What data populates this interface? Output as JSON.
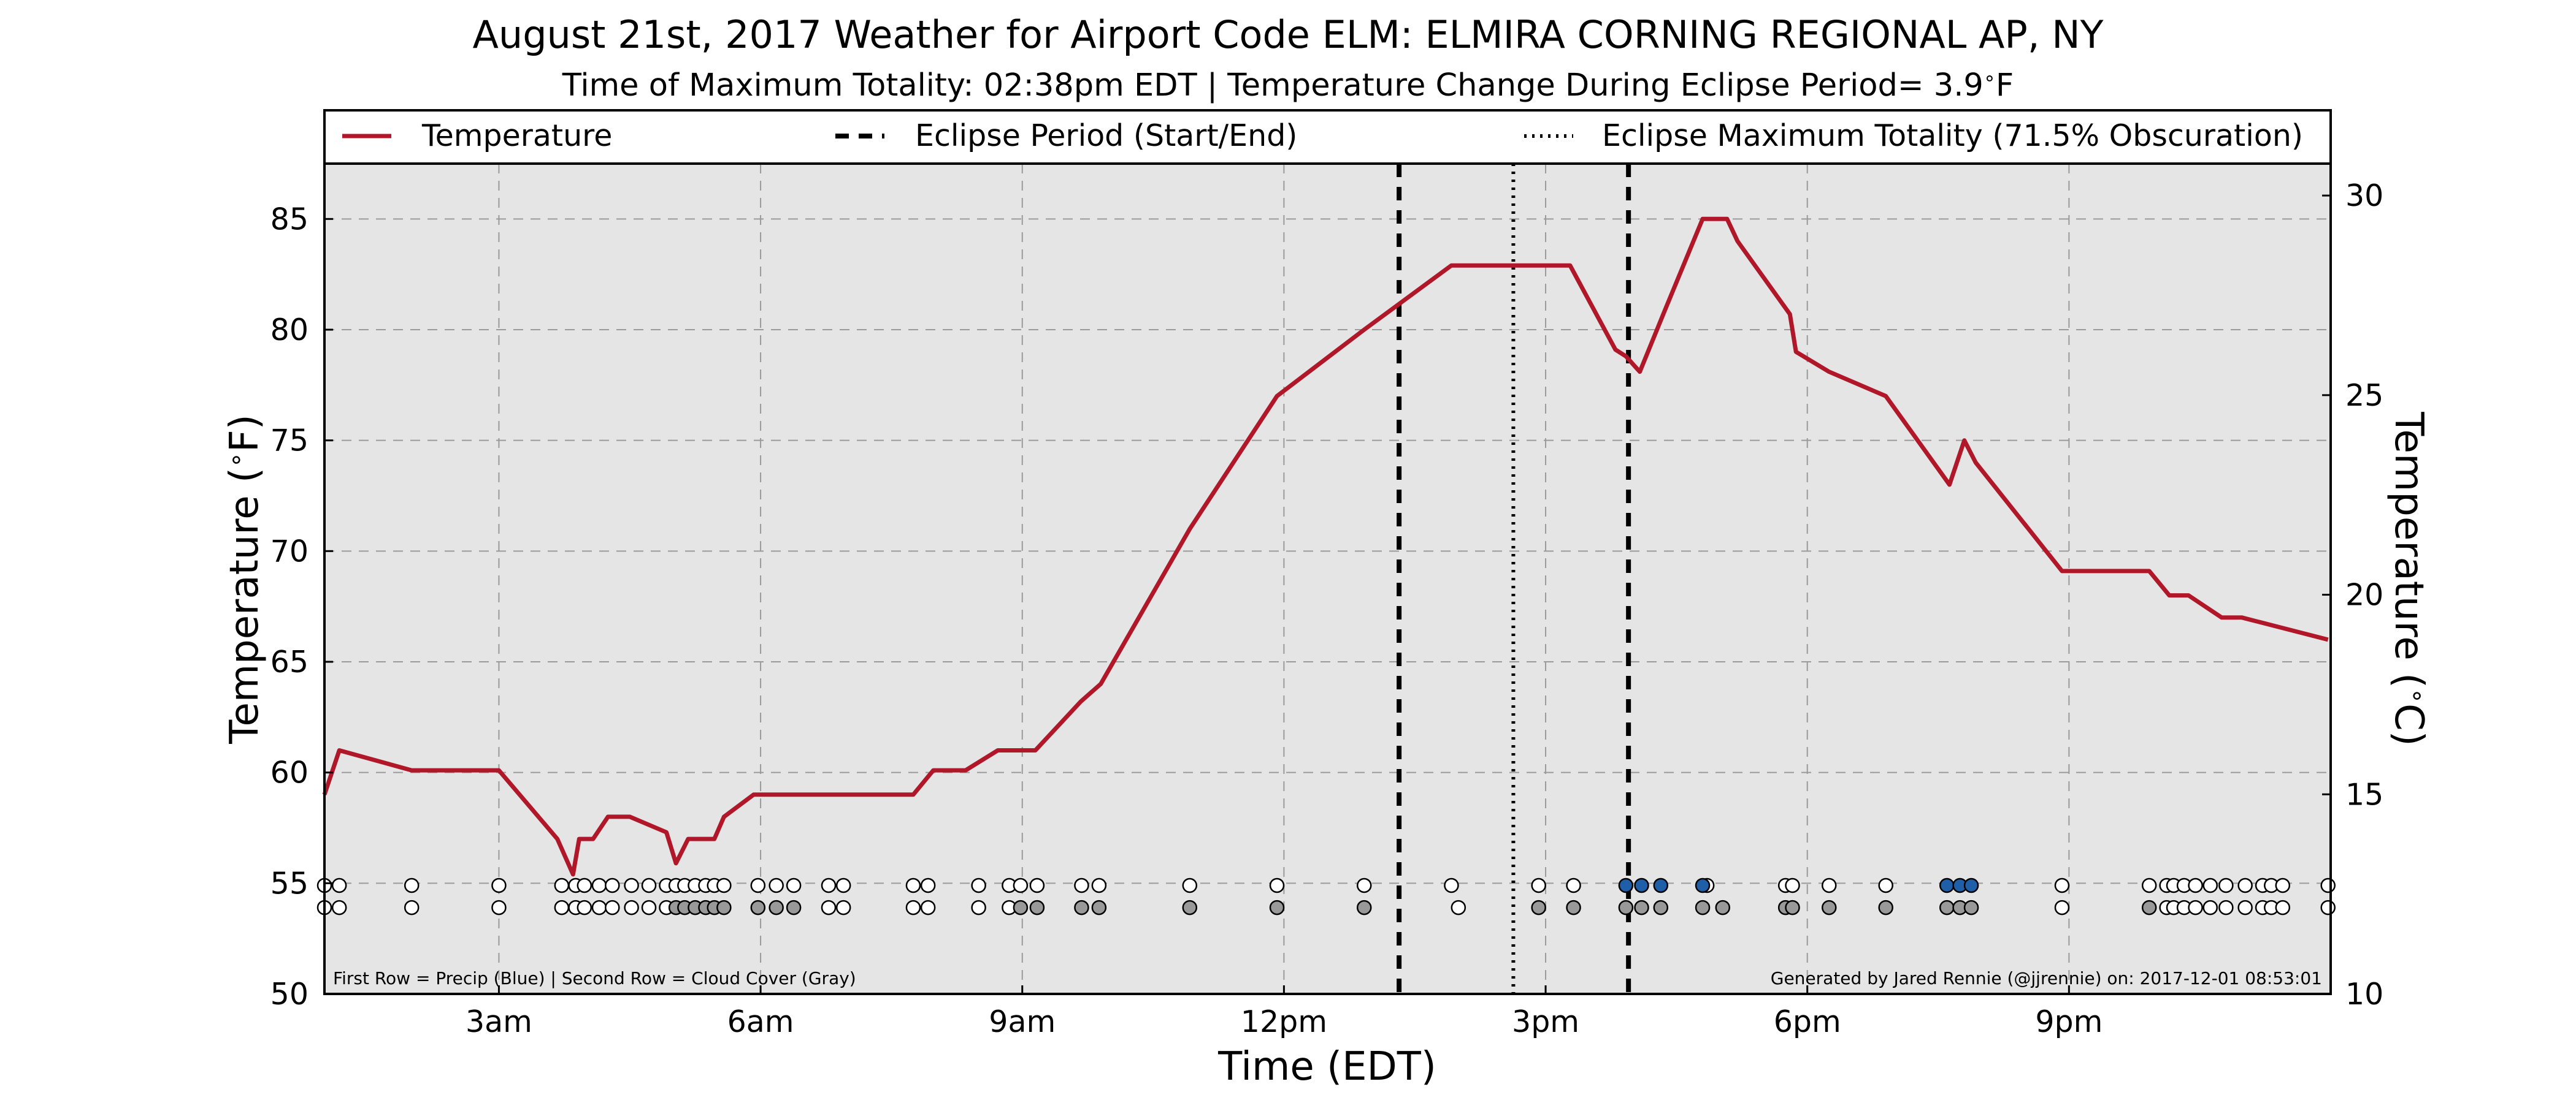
{
  "chart_data": {
    "type": "line",
    "title": "August 21st, 2017 Weather for Airport Code ELM: ELMIRA CORNING REGIONAL AP, NY",
    "subtitle": "Time of Maximum Totality: 02:38pm EDT | Temperature Change During Eclipse Period= 3.9",
    "subtitle_unit": "F",
    "xlabel": "Time (EDT)",
    "ylabel": "Temperature (",
    "y2label": "Temperature (",
    "ylabel_unit": "F)",
    "y2label_unit": "C)",
    "xlim": [
      1.0,
      24.0
    ],
    "ylim": [
      50,
      87.5
    ],
    "y2lim": [
      10,
      30.8
    ],
    "x_ticks": [
      3,
      6,
      9,
      12,
      15,
      18,
      21
    ],
    "x_tick_labels": [
      "3am",
      "6am",
      "9am",
      "12pm",
      "3pm",
      "6pm",
      "9pm"
    ],
    "y_ticks": [
      50,
      55,
      60,
      65,
      70,
      75,
      80,
      85
    ],
    "y_tick_labels": [
      "50",
      "55",
      "60",
      "65",
      "70",
      "75",
      "80",
      "85"
    ],
    "y2_ticks": [
      10,
      15,
      20,
      25,
      30
    ],
    "y2_tick_labels": [
      "10",
      "15",
      "20",
      "25",
      "30"
    ],
    "grid": true,
    "legend": {
      "placement": "top",
      "temperature": "Temperature",
      "eclipse_period": "Eclipse Period (Start/End)",
      "eclipse_max": "Eclipse Maximum Totality (71.5% Obscuration)"
    },
    "footnote_left": "First Row = Precip (Blue) | Second Row = Cloud Cover (Gray)",
    "footnote_right": "Generated by Jared Rennie (@jjrennie) on: 2017-12-01 08:53:01",
    "colors": {
      "temperature": "#b0182a",
      "plot_bg": "#e5e5e5",
      "precip": "#1f5fa8",
      "cloud": "#999999",
      "clear": "#ffffff"
    },
    "eclipse": {
      "start": 13.32,
      "max": 14.63,
      "end": 15.95
    },
    "series": [
      {
        "name": "Temperature",
        "x": [
          1.0,
          1.17,
          2.0,
          2.95,
          3.0,
          3.67,
          3.85,
          3.92,
          4.08,
          4.25,
          4.5,
          4.92,
          5.03,
          5.17,
          5.47,
          5.58,
          5.92,
          6.0,
          6.5,
          7.0,
          7.75,
          7.98,
          8.35,
          8.72,
          9.15,
          9.67,
          9.9,
          10.92,
          11.92,
          12.92,
          13.92,
          14.92,
          15.28,
          15.8,
          15.92,
          16.08,
          16.38,
          16.8,
          17.08,
          17.2,
          17.8,
          17.87,
          18.25,
          18.9,
          19.63,
          19.8,
          19.93,
          20.92,
          21.92,
          22.15,
          22.37,
          22.75,
          22.98,
          23.97
        ],
        "y": [
          59,
          61,
          60.1,
          60.1,
          60.1,
          57,
          55.4,
          57,
          57,
          58,
          58,
          57.3,
          55.9,
          57,
          57,
          58,
          59,
          59,
          59,
          59,
          59,
          60.1,
          60.1,
          61,
          61,
          63.2,
          64,
          71,
          77,
          80,
          82.9,
          82.9,
          82.9,
          79.1,
          78.8,
          78.1,
          81,
          85,
          85,
          84,
          80.7,
          79,
          78.1,
          77,
          73,
          75,
          74,
          69.1,
          69.1,
          68,
          68,
          67,
          67,
          66
        ]
      }
    ],
    "precip_row": {
      "clear_x": [
        1.0,
        1.17,
        2.0,
        3.0,
        3.72,
        3.88,
        3.98,
        4.15,
        4.3,
        4.52,
        4.72,
        4.92,
        5.03,
        5.13,
        5.25,
        5.37,
        5.47,
        5.58,
        5.97,
        6.18,
        6.38,
        6.78,
        6.95,
        7.75,
        7.92,
        8.5,
        8.85,
        8.98,
        9.17,
        9.68,
        9.88,
        10.92,
        11.92,
        12.92,
        13.92,
        14.92,
        15.32,
        16.85,
        17.75,
        17.83,
        18.25,
        18.9,
        20.92,
        21.92,
        22.12,
        22.2,
        22.32,
        22.45,
        22.62,
        22.8,
        23.02,
        23.22,
        23.32,
        23.45,
        23.97
      ],
      "precip_x": [
        15.92,
        16.1,
        16.32,
        16.8,
        19.6,
        19.75,
        19.88
      ]
    },
    "cloud_row": {
      "clear_x": [
        1.0,
        1.17,
        2.0,
        3.0,
        3.72,
        3.88,
        3.98,
        4.15,
        4.3,
        4.52,
        4.72,
        4.92,
        6.78,
        6.95,
        7.75,
        7.92,
        8.5,
        8.85,
        14.0,
        20.92,
        22.12,
        22.2,
        22.32,
        22.45,
        22.62,
        22.8,
        23.02,
        23.22,
        23.32,
        23.45,
        23.97
      ],
      "cloud_x": [
        5.03,
        5.13,
        5.25,
        5.37,
        5.47,
        5.58,
        5.97,
        6.18,
        6.38,
        8.98,
        9.17,
        9.68,
        9.88,
        10.92,
        11.92,
        12.92,
        14.92,
        15.32,
        15.92,
        16.1,
        16.32,
        16.8,
        17.03,
        17.75,
        17.83,
        18.25,
        18.9,
        19.6,
        19.75,
        19.88,
        21.92
      ]
    }
  }
}
